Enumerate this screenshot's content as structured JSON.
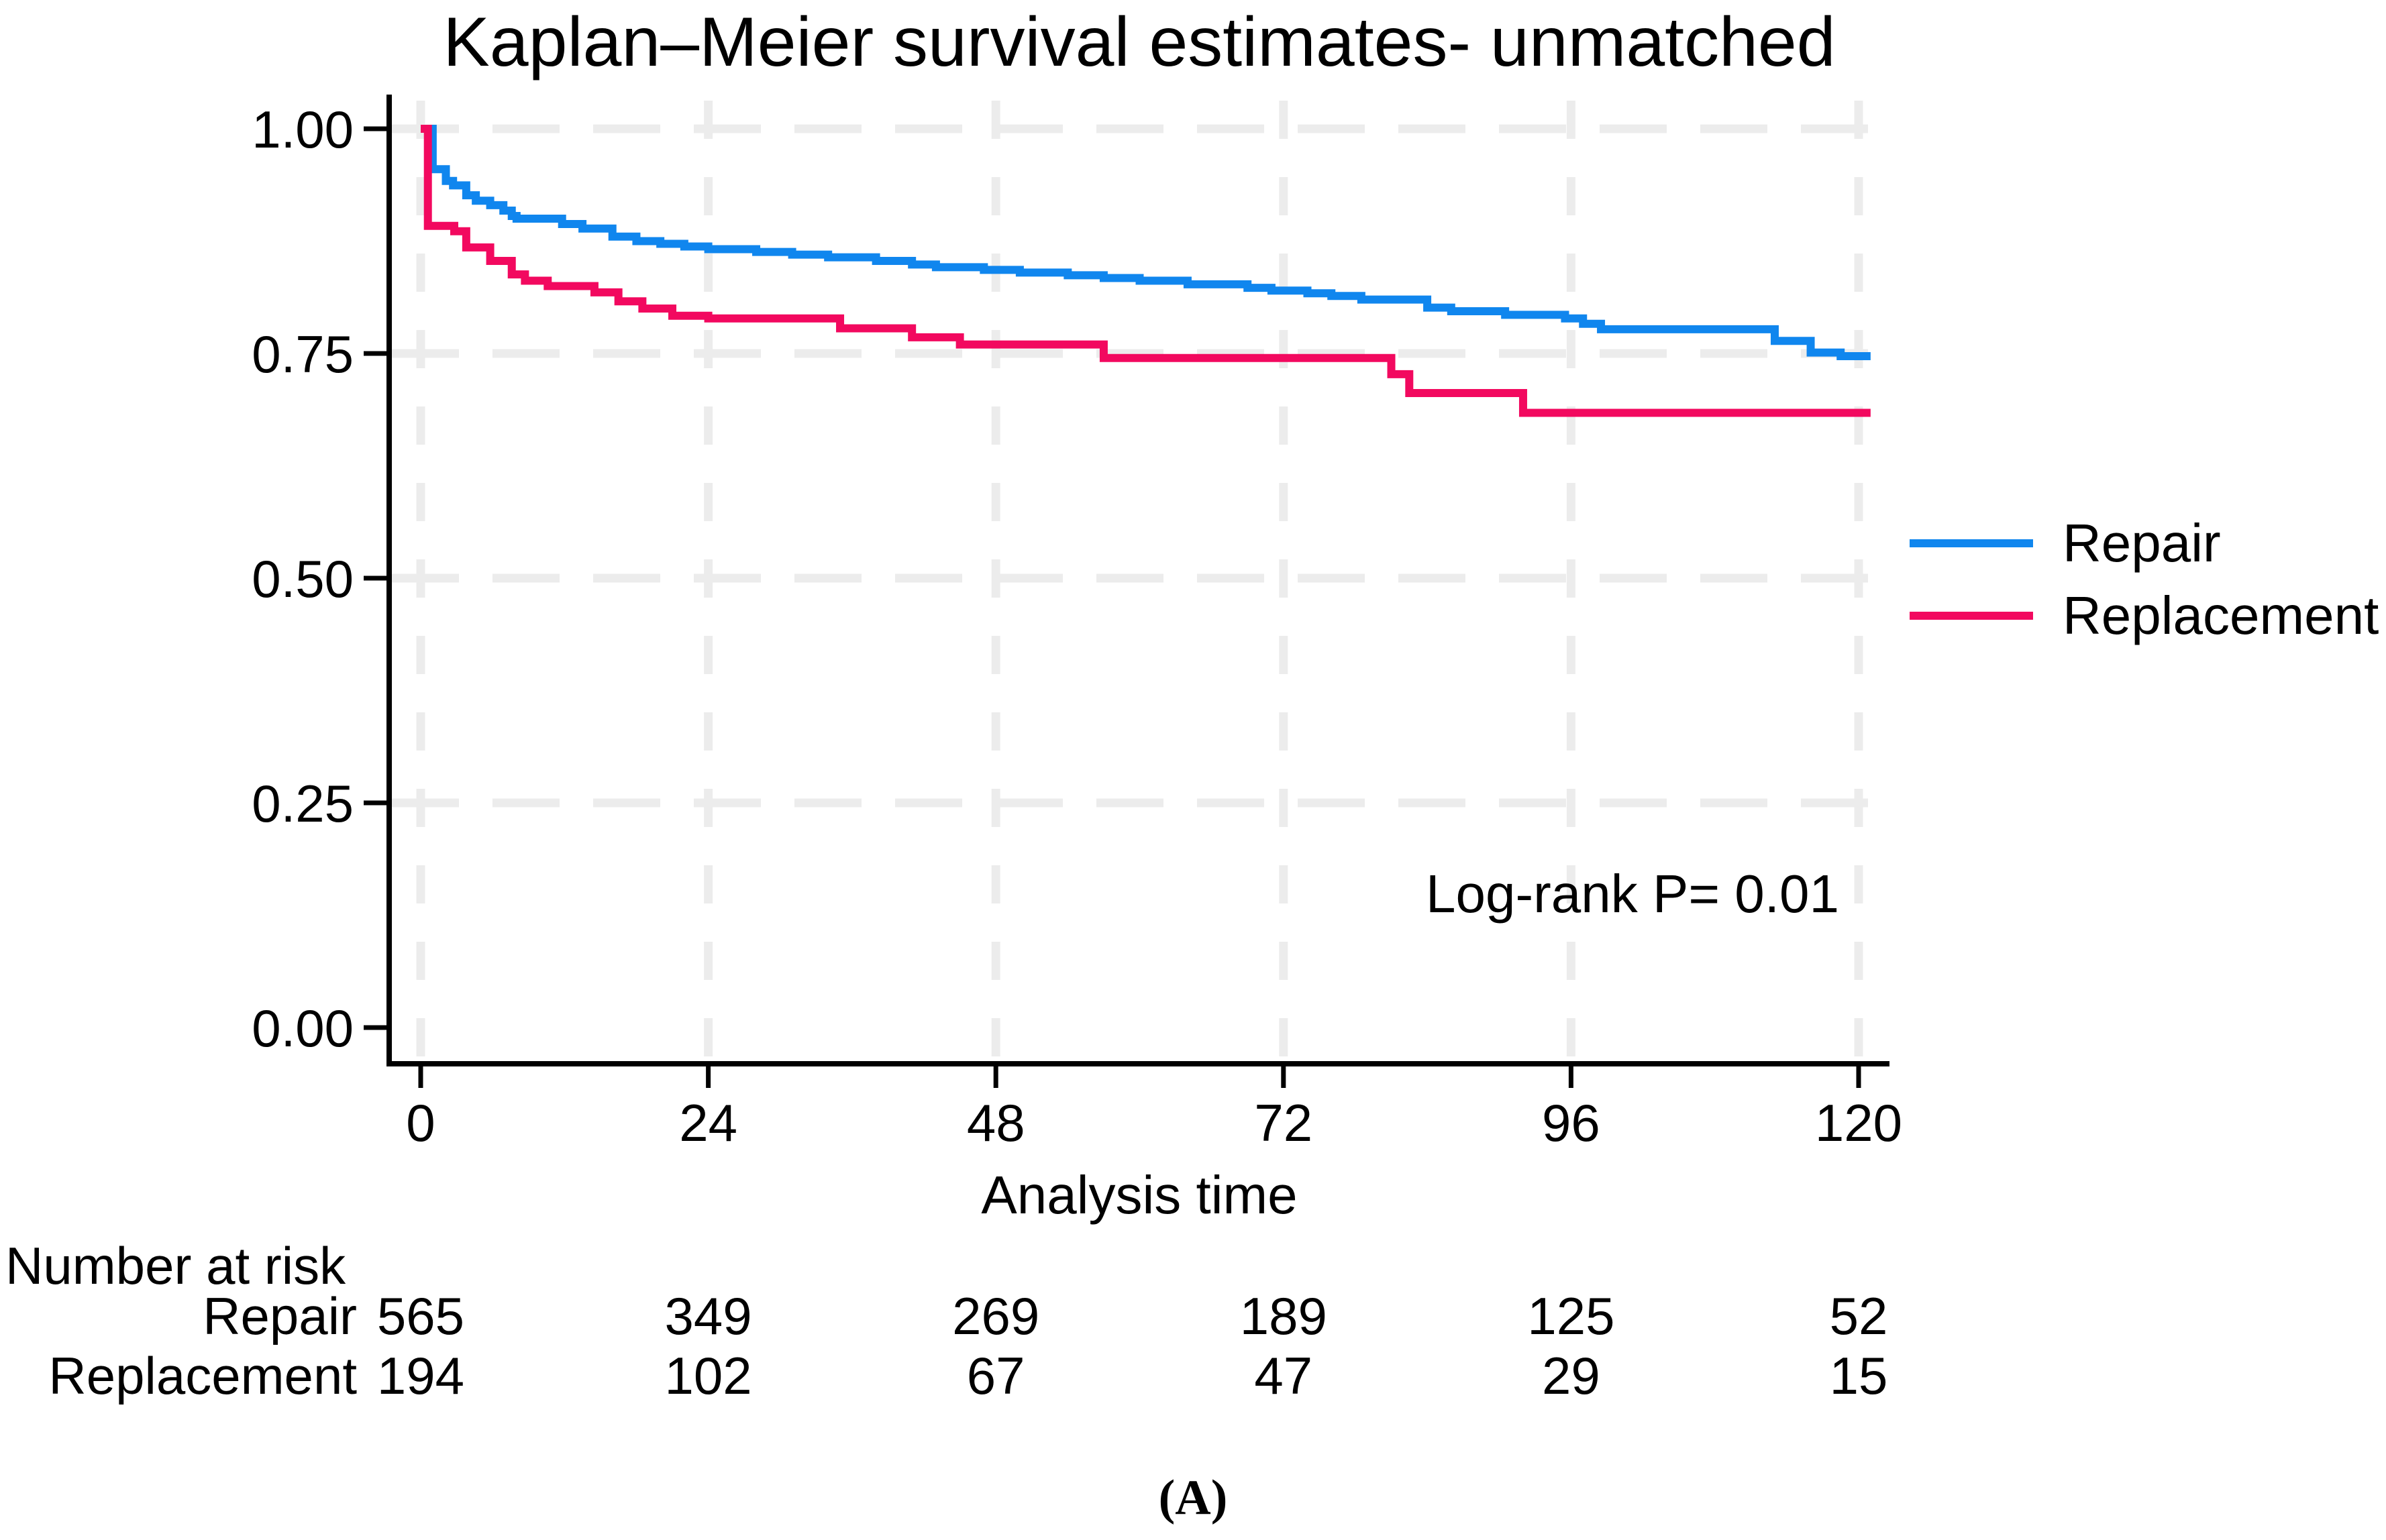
{
  "figure": {
    "title": "Kaplan–Meier survival estimates- unmatched",
    "caption": "(A)"
  },
  "chart_data": {
    "type": "line",
    "subtype": "kaplan-meier-step",
    "title": "Kaplan–Meier survival estimates- unmatched",
    "xlabel": "Analysis time",
    "ylabel": "",
    "xlim": [
      0,
      121
    ],
    "ylim": [
      0,
      1
    ],
    "x_tick_values": [
      0,
      24,
      48,
      72,
      96,
      120
    ],
    "x_tick_labels": [
      "0",
      "24",
      "48",
      "72",
      "96",
      "120"
    ],
    "y_tick_values": [
      1.0,
      0.75,
      0.5,
      0.25,
      0.0
    ],
    "y_tick_labels": [
      "1.00",
      "0.75",
      "0.50",
      "0.25",
      "0.00"
    ],
    "grid": true,
    "grid_color": "#ececec",
    "axis_color": "#000000",
    "legend_position": "right",
    "annotation": "Log-rank P= 0.01",
    "series": [
      {
        "name": "Repair",
        "color": "#1086ee",
        "steps": [
          [
            0,
            1.0
          ],
          [
            1,
            0.955
          ],
          [
            2.1,
            0.942
          ],
          [
            2.7,
            0.937
          ],
          [
            3.8,
            0.926
          ],
          [
            4.6,
            0.92
          ],
          [
            5.8,
            0.915
          ],
          [
            6.9,
            0.909
          ],
          [
            7.6,
            0.903
          ],
          [
            8,
            0.9
          ],
          [
            11.8,
            0.894
          ],
          [
            13.5,
            0.889
          ],
          [
            16,
            0.88
          ],
          [
            18,
            0.875
          ],
          [
            20,
            0.872
          ],
          [
            22,
            0.869
          ],
          [
            24,
            0.866
          ],
          [
            28,
            0.863
          ],
          [
            31,
            0.86
          ],
          [
            34,
            0.857
          ],
          [
            38,
            0.853
          ],
          [
            41,
            0.849
          ],
          [
            43,
            0.846
          ],
          [
            47,
            0.843
          ],
          [
            50,
            0.84
          ],
          [
            54,
            0.837
          ],
          [
            57,
            0.834
          ],
          [
            60,
            0.831
          ],
          [
            64,
            0.827
          ],
          [
            69,
            0.823
          ],
          [
            71,
            0.82
          ],
          [
            74,
            0.817
          ],
          [
            76,
            0.814
          ],
          [
            78.5,
            0.81
          ],
          [
            84,
            0.801
          ],
          [
            86,
            0.797
          ],
          [
            90.5,
            0.793
          ],
          [
            95.5,
            0.789
          ],
          [
            97,
            0.783
          ],
          [
            98.5,
            0.777
          ],
          [
            113,
            0.764
          ],
          [
            116,
            0.751
          ],
          [
            118.5,
            0.747
          ],
          [
            121,
            0.747
          ]
        ]
      },
      {
        "name": "Replacement",
        "color": "#f2095f",
        "steps": [
          [
            0,
            1.0
          ],
          [
            0.6,
            0.892
          ],
          [
            2.8,
            0.886
          ],
          [
            3.8,
            0.868
          ],
          [
            5.8,
            0.853
          ],
          [
            7.6,
            0.838
          ],
          [
            8.7,
            0.831
          ],
          [
            10.6,
            0.825
          ],
          [
            14.5,
            0.818
          ],
          [
            16.5,
            0.808
          ],
          [
            18.5,
            0.8
          ],
          [
            21,
            0.792
          ],
          [
            24,
            0.789
          ],
          [
            35,
            0.778
          ],
          [
            41,
            0.768
          ],
          [
            45,
            0.76
          ],
          [
            57,
            0.745
          ],
          [
            81,
            0.727
          ],
          [
            82.5,
            0.706
          ],
          [
            92,
            0.684
          ],
          [
            121,
            0.684
          ]
        ]
      }
    ]
  },
  "risk_table": {
    "title": "Number at risk",
    "times": [
      0,
      24,
      48,
      72,
      96,
      120
    ],
    "rows": [
      {
        "label": "Repair",
        "counts": [
          565,
          349,
          269,
          189,
          125,
          52
        ]
      },
      {
        "label": "Replacement",
        "counts": [
          194,
          102,
          67,
          47,
          29,
          15
        ]
      }
    ]
  }
}
